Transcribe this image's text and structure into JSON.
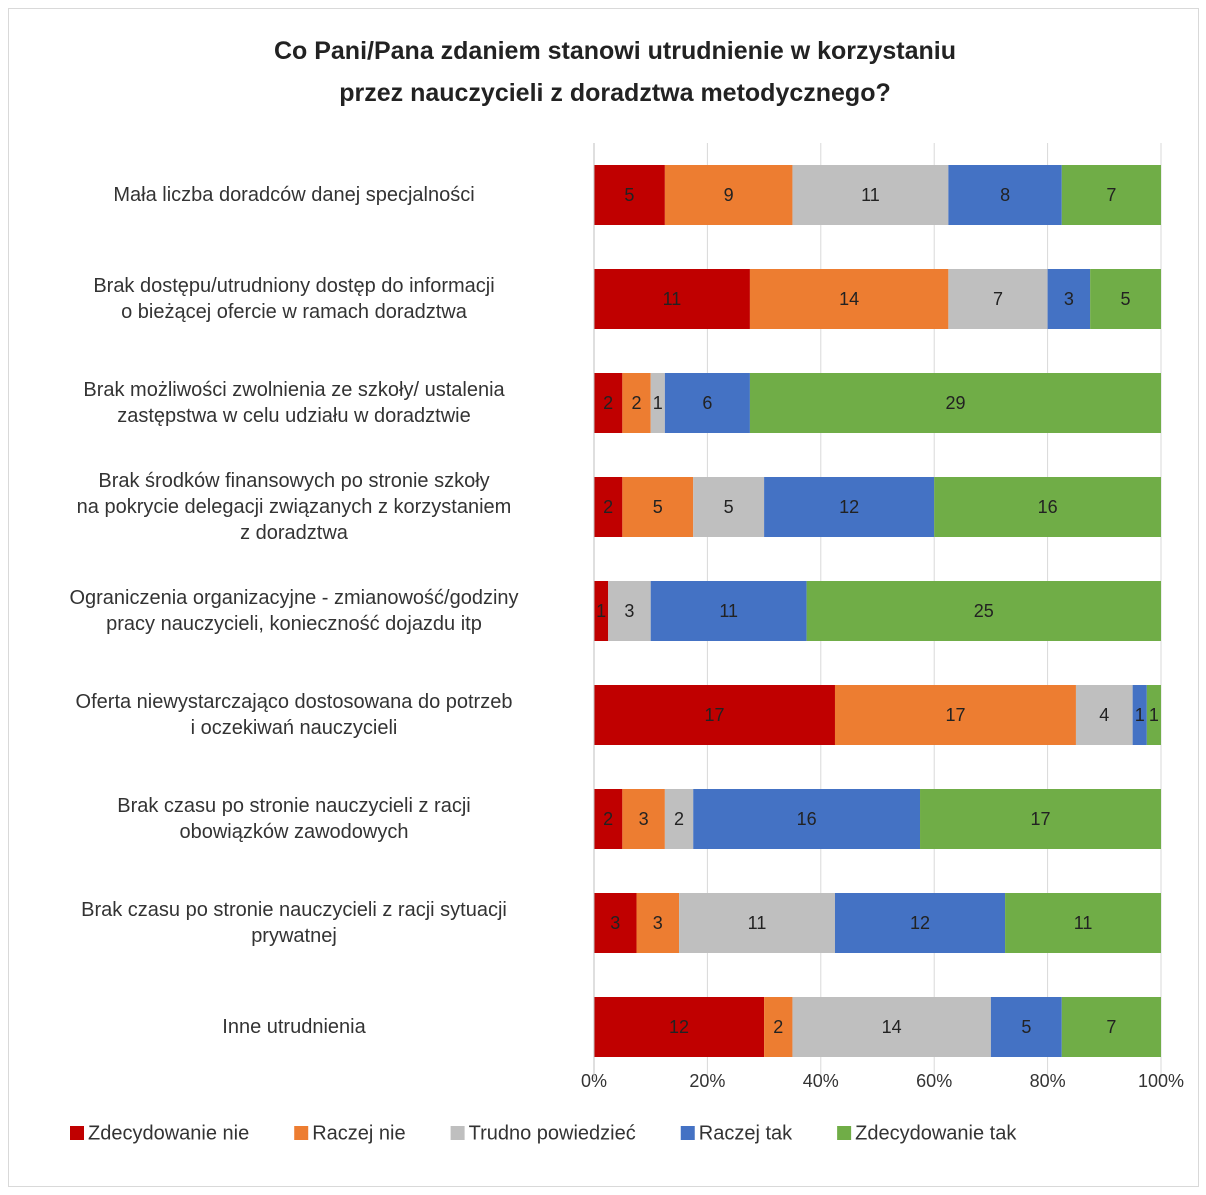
{
  "chart_data": {
    "type": "bar",
    "orientation": "horizontal",
    "stacked": "percent",
    "title": "Co Pani/Pana zdaniem stanowi utrudnienie w korzystaniu\nprzez nauczycieli z doradztwa metodycznego?",
    "categories": [
      "Mała liczba  doradców danej specjalności",
      "Brak dostępu/utrudniony dostęp do informacji\no bieżącej ofercie w ramach doradztwa",
      "Brak możliwości zwolnienia ze szkoły/ ustalenia\nzastępstwa w celu udziału w doradztwie",
      "Brak środków finansowych po stronie szkoły\nna pokrycie delegacji związanych z korzystaniem\nz doradztwa",
      "Ograniczenia organizacyjne - zmianowość/godziny\npracy nauczycieli,  konieczność dojazdu itp",
      "Oferta niewystarczająco dostosowana do potrzeb\ni oczekiwań nauczycieli",
      "Brak czasu po stronie nauczycieli  z racji\nobowiązków zawodowych",
      "Brak czasu po stronie nauczycieli z racji sytuacji\nprywatnej",
      "Inne utrudnienia"
    ],
    "series": [
      {
        "name": "Zdecydowanie nie",
        "color": "#c00000",
        "values": [
          5,
          11,
          2,
          2,
          1,
          17,
          2,
          3,
          12
        ]
      },
      {
        "name": "Raczej nie",
        "color": "#ed7d31",
        "values": [
          9,
          14,
          2,
          5,
          0,
          17,
          3,
          3,
          2
        ]
      },
      {
        "name": "Trudno powiedzieć",
        "color": "#bfbfbf",
        "values": [
          11,
          7,
          1,
          5,
          3,
          4,
          2,
          11,
          14
        ]
      },
      {
        "name": "Raczej tak",
        "color": "#4472c4",
        "values": [
          8,
          3,
          6,
          12,
          11,
          1,
          16,
          12,
          5
        ]
      },
      {
        "name": "Zdecydowanie tak",
        "color": "#70ad47",
        "values": [
          7,
          5,
          29,
          16,
          25,
          1,
          17,
          11,
          7
        ]
      }
    ],
    "xlim": [
      0,
      100
    ],
    "xticks": [
      {
        "value": 0,
        "label": "0%"
      },
      {
        "value": 20,
        "label": "20%"
      },
      {
        "value": 40,
        "label": "40%"
      },
      {
        "value": 60,
        "label": "60%"
      },
      {
        "value": 80,
        "label": "80%"
      },
      {
        "value": 100,
        "label": "100%"
      }
    ],
    "grid": true,
    "legend": "bottom"
  }
}
